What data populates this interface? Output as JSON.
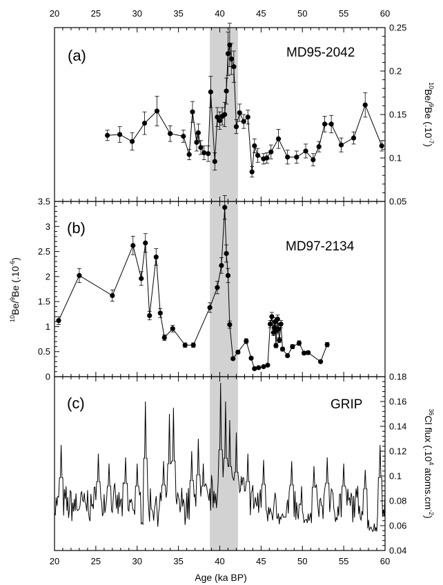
{
  "chart_data": [
    {
      "type": "scatter",
      "panel_label": "(a)",
      "series_label": "MD95-2042",
      "xlim": [
        20,
        60
      ],
      "ylim": [
        0.05,
        0.25
      ],
      "y_ticks": [
        "0.05",
        "0.1",
        "0.15",
        "0.2",
        "0.25"
      ],
      "y_side": "right",
      "y_label": {
        "pre": "",
        "s1": "10",
        "m1": "Be/",
        "s2": "9",
        "m2": "Be (.10",
        "s3": "-7",
        "post": ")"
      },
      "error_bars": true,
      "connected": true,
      "x": [
        26.4,
        27.9,
        29.4,
        30.9,
        32.4,
        34.0,
        35.6,
        36.3,
        36.7,
        37.2,
        37.4,
        37.7,
        38.1,
        38.6,
        38.9,
        39.4,
        39.7,
        40.0,
        40.3,
        40.6,
        40.8,
        41.0,
        41.2,
        41.4,
        41.7,
        42.0,
        42.4,
        42.9,
        43.4,
        43.9,
        44.2,
        44.6,
        45.3,
        45.7,
        46.2,
        47.1,
        48.2,
        49.3,
        50.4,
        51.3,
        52.0,
        52.7,
        53.5,
        54.7,
        56.2,
        57.6,
        59.6
      ],
      "y": [
        0.126,
        0.127,
        0.119,
        0.14,
        0.154,
        0.128,
        0.125,
        0.104,
        0.153,
        0.118,
        0.129,
        0.112,
        0.106,
        0.105,
        0.176,
        0.096,
        0.147,
        0.143,
        0.148,
        0.15,
        0.177,
        0.22,
        0.23,
        0.214,
        0.205,
        0.136,
        0.152,
        0.142,
        0.147,
        0.084,
        0.114,
        0.103,
        0.099,
        0.1,
        0.107,
        0.122,
        0.101,
        0.101,
        0.108,
        0.098,
        0.113,
        0.139,
        0.139,
        0.115,
        0.123,
        0.161,
        0.114
      ],
      "err": [
        0.006,
        0.009,
        0.01,
        0.013,
        0.017,
        0.009,
        0.007,
        0.006,
        0.012,
        0.01,
        0.01,
        0.008,
        0.008,
        0.009,
        0.018,
        0.01,
        0.011,
        0.01,
        0.01,
        0.014,
        0.015,
        0.025,
        0.025,
        0.018,
        0.018,
        0.008,
        0.01,
        0.008,
        0.008,
        0.006,
        0.008,
        0.008,
        0.006,
        0.006,
        0.008,
        0.011,
        0.008,
        0.007,
        0.008,
        0.007,
        0.006,
        0.009,
        0.01,
        0.008,
        0.007,
        0.014,
        0.006
      ]
    },
    {
      "type": "scatter",
      "panel_label": "(b)",
      "series_label": "MD97-2134",
      "xlim": [
        20,
        60
      ],
      "ylim": [
        0,
        3.5
      ],
      "y_ticks": [
        "0",
        "0.5",
        "1",
        "1.5",
        "2",
        "2.5",
        "3",
        "3.5"
      ],
      "y_side": "left",
      "y_label": {
        "pre": "",
        "s1": "10",
        "m1": "Be/",
        "s2": "9",
        "m2": "Be (.10",
        "s3": "-6",
        "post": ")"
      },
      "error_bars": true,
      "connected": true,
      "x": [
        20.5,
        23.0,
        27.0,
        29.5,
        30.5,
        31.0,
        31.5,
        32.3,
        32.8,
        33.3,
        34.3,
        35.8,
        36.8,
        38.8,
        39.7,
        40.2,
        40.6,
        40.8,
        41.0,
        41.2,
        41.6,
        42.2,
        43.2,
        43.8,
        44.2,
        44.7,
        45.3,
        45.8,
        46.1,
        46.3,
        46.5,
        46.6,
        46.7,
        46.8,
        46.9,
        47.0,
        47.1,
        47.2,
        47.4,
        47.6,
        48.2,
        48.8,
        49.6,
        50.2,
        50.7,
        52.2,
        53.0
      ],
      "y": [
        1.12,
        2.02,
        1.62,
        2.62,
        1.96,
        2.67,
        1.22,
        2.39,
        1.27,
        0.78,
        0.96,
        0.63,
        0.63,
        1.38,
        1.78,
        2.22,
        3.38,
        2.46,
        2.02,
        1.04,
        0.36,
        0.49,
        0.71,
        0.37,
        0.16,
        0.18,
        0.2,
        0.23,
        1.05,
        1.2,
        0.88,
        0.98,
        1.1,
        0.62,
        0.92,
        1.15,
        0.95,
        0.73,
        1.05,
        0.55,
        0.42,
        0.6,
        0.67,
        0.47,
        0.48,
        0.3,
        0.64
      ]
    },
    {
      "type": "line",
      "panel_label": "(c)",
      "series_label": "GRIP",
      "xlim": [
        20,
        60
      ],
      "ylim": [
        0.04,
        0.18
      ],
      "y_ticks": [
        "0.04",
        "0.06",
        "0.08",
        "0.1",
        "0.12",
        "0.14",
        "0.16",
        "0.18"
      ],
      "y_side": "right",
      "y_label": {
        "pre": "",
        "s1": "36",
        "m1": "Cl flux (.10",
        "s2": "4",
        "m2": " atoms.cm",
        "s3": "-2",
        "post": ")"
      },
      "x_ticks": [
        "20",
        "25",
        "30",
        "35",
        "40",
        "45",
        "50",
        "55",
        "60"
      ],
      "x_label": "Age (ka BP)",
      "generator": {
        "start": 20,
        "end": 60,
        "step": 0.1,
        "base": 0.077,
        "noise": 0.012,
        "seed": 7
      },
      "peaks": [
        {
          "x": 20.8,
          "y": 0.125
        },
        {
          "x": 25.3,
          "y": 0.118
        },
        {
          "x": 26.6,
          "y": 0.11
        },
        {
          "x": 28.6,
          "y": 0.115
        },
        {
          "x": 30.0,
          "y": 0.11
        },
        {
          "x": 31.0,
          "y": 0.16
        },
        {
          "x": 33.2,
          "y": 0.112
        },
        {
          "x": 33.9,
          "y": 0.15
        },
        {
          "x": 34.4,
          "y": 0.155
        },
        {
          "x": 36.6,
          "y": 0.12
        },
        {
          "x": 37.4,
          "y": 0.13
        },
        {
          "x": 38.0,
          "y": 0.11
        },
        {
          "x": 40.1,
          "y": 0.175
        },
        {
          "x": 40.7,
          "y": 0.16
        },
        {
          "x": 41.2,
          "y": 0.145
        },
        {
          "x": 42.0,
          "y": 0.135
        },
        {
          "x": 43.4,
          "y": 0.118
        },
        {
          "x": 45.3,
          "y": 0.113
        },
        {
          "x": 48.7,
          "y": 0.112
        },
        {
          "x": 51.4,
          "y": 0.108
        },
        {
          "x": 53.0,
          "y": 0.115
        },
        {
          "x": 55.0,
          "y": 0.11
        },
        {
          "x": 57.6,
          "y": 0.105
        },
        {
          "x": 59.4,
          "y": 0.125
        }
      ],
      "dips": [
        {
          "x": 47.5,
          "y": 0.06
        },
        {
          "x": 50.6,
          "y": 0.062
        },
        {
          "x": 58.5,
          "y": 0.055
        }
      ]
    }
  ],
  "shared_x_ticks": [
    "20",
    "25",
    "30",
    "35",
    "40",
    "45",
    "50",
    "55",
    "60"
  ],
  "shaded_band": {
    "from": 38.8,
    "to": 42.2,
    "color": "#d2d2d2"
  },
  "colors": {
    "data": "#000000",
    "band": "#d2d2d2"
  }
}
